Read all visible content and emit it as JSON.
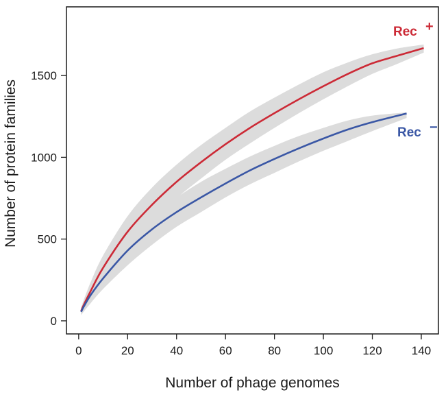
{
  "chart_data": {
    "type": "line",
    "xlabel": "Number of phage genomes",
    "ylabel": "Number of protein families",
    "xlim": [
      -5,
      147
    ],
    "ylim": [
      -80,
      1920
    ],
    "xticks": [
      0,
      20,
      40,
      60,
      80,
      100,
      120,
      140
    ],
    "yticks": [
      0,
      500,
      1000,
      1500
    ],
    "grid": false,
    "legend": "none",
    "band_color": "#dcdcdc",
    "series": [
      {
        "name": "Rec +",
        "label_main": "Rec",
        "label_sup": "+",
        "color": "#cc2a36",
        "x": [
          1,
          2,
          5,
          10,
          20,
          30,
          40,
          50,
          60,
          70,
          80,
          90,
          100,
          110,
          120,
          130,
          141
        ],
        "y": [
          60,
          95,
          185,
          325,
          545,
          710,
          850,
          970,
          1080,
          1180,
          1270,
          1355,
          1435,
          1510,
          1575,
          1620,
          1668
        ],
        "band_upper": [
          80,
          125,
          240,
          400,
          640,
          815,
          955,
          1075,
          1180,
          1280,
          1365,
          1445,
          1520,
          1580,
          1630,
          1665,
          1690
        ],
        "band_lower": [
          40,
          65,
          130,
          250,
          450,
          610,
          750,
          870,
          985,
          1085,
          1180,
          1270,
          1355,
          1435,
          1510,
          1570,
          1640
        ]
      },
      {
        "name": "Rec −",
        "label_main": "Rec",
        "label_sup": "−",
        "color": "#3a57a5",
        "x": [
          1,
          2,
          5,
          10,
          20,
          30,
          40,
          50,
          60,
          70,
          80,
          90,
          100,
          110,
          120,
          134
        ],
        "y": [
          55,
          85,
          160,
          260,
          430,
          560,
          665,
          755,
          840,
          920,
          990,
          1055,
          1115,
          1170,
          1215,
          1268
        ],
        "band_upper": [
          75,
          115,
          210,
          325,
          520,
          655,
          755,
          850,
          930,
          1005,
          1070,
          1130,
          1180,
          1225,
          1255,
          1275
        ],
        "band_lower": [
          35,
          55,
          110,
          195,
          340,
          465,
          575,
          665,
          755,
          835,
          905,
          975,
          1040,
          1100,
          1160,
          1240
        ]
      }
    ]
  }
}
